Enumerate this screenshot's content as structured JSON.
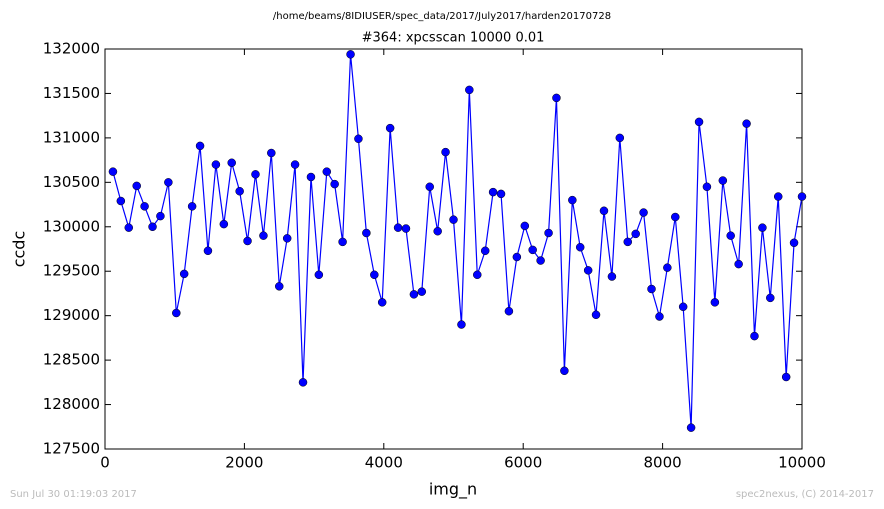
{
  "chart_data": {
    "type": "line",
    "suptitle": "/home/beams/8IDIUSER/spec_data/2017/July2017/harden20170728",
    "title": "#364: xpcsscan 10000 0.01",
    "xlabel": "img_n",
    "ylabel": "ccdc",
    "footnotes": [
      "Sun Jul 30 01:19:03 2017",
      "spec2nexus, (C) 2014-2017"
    ],
    "xlim": [
      0,
      10000
    ],
    "ylim": [
      127500,
      132000
    ],
    "xticks": [
      0,
      2000,
      4000,
      6000,
      8000,
      10000
    ],
    "yticks": [
      127500,
      128000,
      128500,
      129000,
      129500,
      130000,
      130500,
      131000,
      131500,
      132000
    ],
    "series": [
      {
        "color": "#0000ff",
        "x": [
          114,
          227,
          341,
          455,
          568,
          682,
          795,
          909,
          1023,
          1136,
          1250,
          1364,
          1477,
          1591,
          1705,
          1818,
          1932,
          2045,
          2159,
          2273,
          2386,
          2500,
          2614,
          2727,
          2841,
          2955,
          3068,
          3182,
          3295,
          3409,
          3523,
          3636,
          3750,
          3864,
          3977,
          4091,
          4205,
          4318,
          4432,
          4545,
          4659,
          4773,
          4886,
          5000,
          5114,
          5227,
          5341,
          5455,
          5568,
          5682,
          5795,
          5909,
          6023,
          6136,
          6250,
          6364,
          6477,
          6591,
          6705,
          6818,
          6932,
          7045,
          7159,
          7273,
          7386,
          7500,
          7614,
          7727,
          7841,
          7955,
          8068,
          8182,
          8295,
          8409,
          8523,
          8636,
          8750,
          8864,
          8977,
          9091,
          9205,
          9318,
          9432,
          9545,
          9659,
          9773,
          9886,
          10000
        ],
        "values": [
          130620,
          130290,
          129990,
          130460,
          130230,
          130000,
          130120,
          130500,
          129030,
          129470,
          130230,
          130910,
          129730,
          130700,
          130030,
          130720,
          130400,
          129840,
          130590,
          129900,
          130830,
          129330,
          129870,
          130700,
          128250,
          130560,
          129460,
          130620,
          130480,
          129830,
          131940,
          130990,
          129930,
          129460,
          129150,
          131110,
          129990,
          129980,
          129240,
          129270,
          130450,
          129950,
          130840,
          130080,
          128900,
          131540,
          129460,
          129730,
          130390,
          130370,
          129050,
          129660,
          130010,
          129740,
          129620,
          129930,
          131450,
          128380,
          130300,
          129770,
          129510,
          129010,
          130180,
          129440,
          131000,
          129830,
          129920,
          130160,
          129300,
          128990,
          129540,
          130110,
          129100,
          127740,
          131180,
          130450,
          129150,
          130520,
          129900,
          129580,
          131160,
          128770,
          129990,
          129200,
          130340,
          128310,
          129820,
          130340
        ]
      }
    ]
  }
}
